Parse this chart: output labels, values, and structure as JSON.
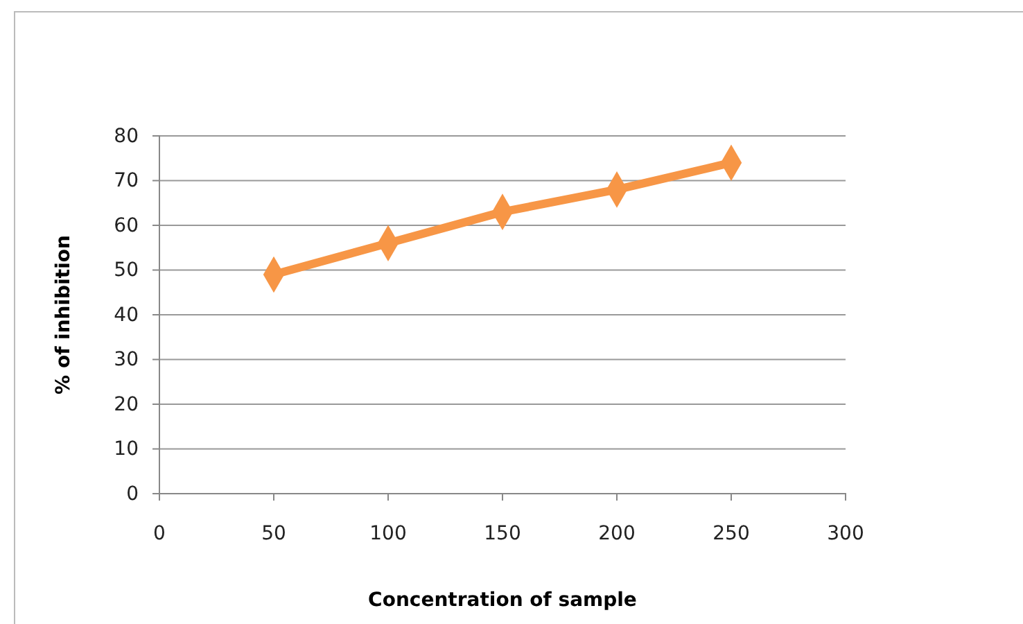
{
  "chart_data": {
    "type": "line",
    "xlabel": "Concentration of sample",
    "ylabel": "% of inhibition",
    "x": [
      50,
      100,
      150,
      200,
      250
    ],
    "series": [
      {
        "color": "#f79646",
        "values": [
          49,
          56,
          63,
          68,
          74
        ]
      }
    ],
    "xlim": [
      0,
      300
    ],
    "xticks": [
      0,
      50,
      100,
      150,
      200,
      250,
      300
    ],
    "ylim": [
      0,
      80
    ],
    "yticks": [
      0,
      10,
      20,
      30,
      40,
      50,
      60,
      70,
      80
    ],
    "grid": "y",
    "marker": "diamond",
    "line_style": "solid"
  }
}
